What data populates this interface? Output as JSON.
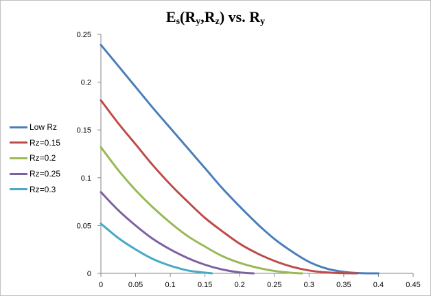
{
  "title_parts": {
    "p1": "E",
    "p2": "s",
    "p3": "(R",
    "p4": "y",
    "p5": ",R",
    "p6": "z",
    "p7": ") vs. R",
    "p8": "y"
  },
  "chart_data": {
    "type": "line",
    "title": "Es(Ry,Rz) vs. Ry",
    "xlabel": "",
    "ylabel": "",
    "xlim": [
      0,
      0.45
    ],
    "ylim": [
      0,
      0.25
    ],
    "x_ticks": [
      "0",
      "0.05",
      "0.1",
      "0.15",
      "0.2",
      "0.25",
      "0.3",
      "0.35",
      "0.4",
      "0.45"
    ],
    "y_ticks": [
      "0",
      "0.05",
      "0.1",
      "0.15",
      "0.2",
      "0.25"
    ],
    "grid": false,
    "legend_position": "left",
    "series": [
      {
        "name": "Low Rz",
        "color": "#4a7ebb",
        "x": [
          0,
          0.025,
          0.05,
          0.075,
          0.1,
          0.125,
          0.15,
          0.175,
          0.2,
          0.225,
          0.25,
          0.275,
          0.3,
          0.325,
          0.35,
          0.375,
          0.4
        ],
        "y": [
          0.239,
          0.217,
          0.195,
          0.173,
          0.152,
          0.131,
          0.11,
          0.089,
          0.07,
          0.052,
          0.036,
          0.023,
          0.012,
          0.005,
          0.0015,
          0.0002,
          0
        ]
      },
      {
        "name": "Rz=0.15",
        "color": "#be4b48",
        "x": [
          0,
          0.025,
          0.05,
          0.075,
          0.1,
          0.125,
          0.15,
          0.175,
          0.2,
          0.225,
          0.25,
          0.275,
          0.3,
          0.325,
          0.35,
          0.37
        ],
        "y": [
          0.181,
          0.157,
          0.135,
          0.113,
          0.093,
          0.075,
          0.058,
          0.044,
          0.031,
          0.021,
          0.013,
          0.007,
          0.003,
          0.001,
          0.0002,
          0
        ]
      },
      {
        "name": "Rz=0.2",
        "color": "#98b954",
        "x": [
          0,
          0.025,
          0.05,
          0.075,
          0.1,
          0.125,
          0.15,
          0.175,
          0.2,
          0.225,
          0.25,
          0.275,
          0.29
        ],
        "y": [
          0.132,
          0.108,
          0.087,
          0.069,
          0.053,
          0.039,
          0.028,
          0.018,
          0.011,
          0.006,
          0.0025,
          0.0006,
          0
        ]
      },
      {
        "name": "Rz=0.25",
        "color": "#7d60a0",
        "x": [
          0,
          0.025,
          0.05,
          0.075,
          0.1,
          0.125,
          0.15,
          0.175,
          0.2,
          0.22
        ],
        "y": [
          0.085,
          0.066,
          0.05,
          0.036,
          0.025,
          0.016,
          0.009,
          0.004,
          0.001,
          0
        ]
      },
      {
        "name": "Rz=0.3",
        "color": "#46aac5",
        "x": [
          0,
          0.025,
          0.05,
          0.075,
          0.1,
          0.125,
          0.15,
          0.16
        ],
        "y": [
          0.052,
          0.037,
          0.025,
          0.015,
          0.008,
          0.003,
          0.0007,
          0
        ]
      }
    ]
  }
}
